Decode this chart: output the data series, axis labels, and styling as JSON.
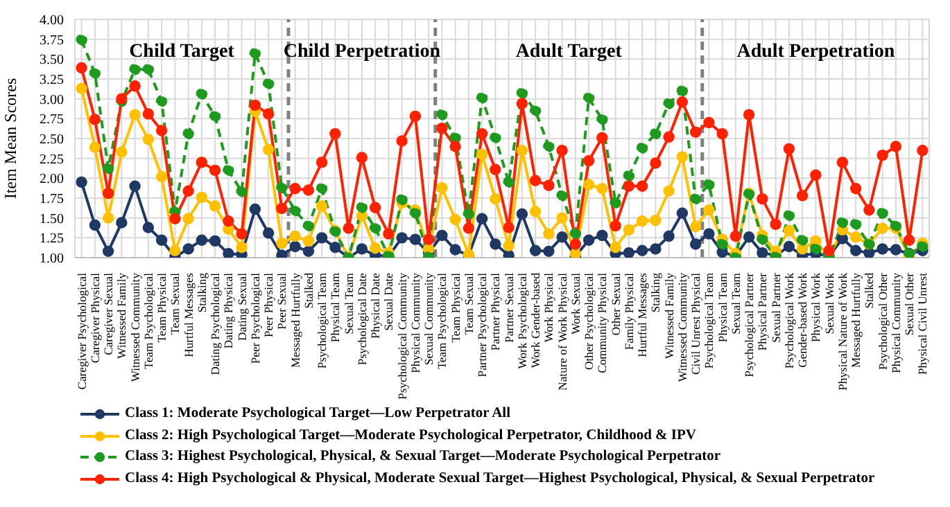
{
  "chart_data": {
    "type": "line",
    "ylabel": "Item Mean Scores",
    "categories": [
      "Caregiver Psychological",
      "Caregiver Physical",
      "Caregiver Sexual",
      "Witnessed Family",
      "Witnessed Community",
      "Team Psychological",
      "Team Physical",
      "Team Sexual",
      "Hurtful Messages",
      "Stalking",
      "Dating Psychological",
      "Dating Physical",
      "Dating Sexual",
      "Peer Psychological",
      "Peer Physical",
      "Peer Sexual",
      "Messaged Hurtfully",
      "Stalked",
      "Psychological Team",
      "Physical Team",
      "Sexual Team",
      "Psychological Date",
      "Physical Date",
      "Sexual Date",
      "Psychological Community",
      "Physical Community",
      "Sexual Community",
      "Team Psychological",
      "Team Physical",
      "Team Sexual",
      "Partner Psychological",
      "Partner Physical",
      "Partner Sexual",
      "Work Psychological",
      "Work Gender-based",
      "Work Physical",
      "Nature of Work Physical",
      "Work Sexual",
      "Other Psychological",
      "Community Physical",
      "Other Sexual",
      "Family Physical",
      "Hurtful Messages",
      "Stalking",
      "Witnessed Family",
      "Witnessed Community",
      "Civil Unrest Physical",
      "Psychological Team",
      "Physical Team",
      "Sexual Team",
      "Psychological Partner",
      "Physical Partner",
      "Sexual Partner",
      "Psychological Work",
      "Gender-based Work",
      "Physical Work",
      "Sexual Work",
      "Physical Nature of Work",
      "Messaged Hurtfully",
      "Stalked",
      "Psychological Other",
      "Physical Community",
      "Sexual Other",
      "Physical Civil Unrest"
    ],
    "series": [
      {
        "name": "Class 1: Moderate Psychological Target—Low Perpetrator All",
        "color": "#203864",
        "line_style": "solid",
        "values": [
          1.95,
          1.41,
          1.08,
          1.44,
          1.9,
          1.38,
          1.22,
          1.01,
          1.11,
          1.22,
          1.21,
          1.05,
          1.04,
          1.61,
          1.31,
          1.03,
          1.14,
          1.08,
          1.25,
          1.13,
          1.0,
          1.11,
          1.03,
          1.02,
          1.25,
          1.23,
          1.06,
          1.28,
          1.1,
          1.03,
          1.49,
          1.17,
          1.03,
          1.55,
          1.09,
          1.08,
          1.26,
          1.02,
          1.22,
          1.28,
          1.05,
          1.06,
          1.09,
          1.11,
          1.27,
          1.56,
          1.17,
          1.3,
          1.07,
          1.02,
          1.26,
          1.06,
          1.03,
          1.14,
          1.03,
          1.05,
          1.02,
          1.24,
          1.09,
          1.06,
          1.11,
          1.1,
          1.05,
          1.09
        ]
      },
      {
        "name": "Class 2: High Psychological Target—Moderate Psychological Perpetrator, Childhood & IPV",
        "color": "#ffc000",
        "line_style": "solid",
        "values": [
          3.13,
          2.39,
          1.5,
          2.33,
          2.8,
          2.49,
          2.02,
          1.09,
          1.49,
          1.76,
          1.65,
          1.36,
          1.13,
          2.84,
          2.36,
          1.18,
          1.27,
          1.21,
          1.65,
          1.34,
          1.0,
          1.53,
          1.12,
          1.06,
          1.69,
          1.6,
          1.11,
          1.88,
          1.48,
          1.04,
          2.3,
          1.74,
          1.15,
          2.35,
          1.58,
          1.3,
          1.5,
          1.05,
          1.92,
          1.87,
          1.13,
          1.35,
          1.46,
          1.47,
          1.84,
          2.27,
          1.39,
          1.6,
          1.23,
          1.05,
          1.81,
          1.28,
          1.08,
          1.34,
          1.11,
          1.21,
          1.01,
          1.35,
          1.26,
          1.17,
          1.37,
          1.37,
          1.01,
          1.18
        ]
      },
      {
        "name": "Class 3: Highest Psychological, Physical, & Sexual Target—Moderate Psychological Perpetrator",
        "color": "#1e9a1e",
        "line_style": "dashed",
        "values": [
          3.74,
          3.32,
          2.12,
          2.97,
          3.37,
          3.37,
          2.97,
          1.58,
          2.56,
          3.06,
          2.78,
          2.1,
          1.83,
          3.57,
          3.19,
          1.88,
          1.59,
          1.4,
          1.87,
          1.33,
          1.0,
          1.63,
          1.37,
          1.02,
          1.73,
          1.56,
          1.01,
          2.8,
          2.51,
          1.55,
          3.01,
          2.51,
          1.95,
          3.07,
          2.85,
          2.4,
          1.78,
          1.3,
          3.01,
          2.74,
          1.69,
          2.03,
          2.38,
          2.56,
          2.94,
          3.1,
          1.74,
          1.92,
          1.17,
          1.0,
          1.8,
          1.23,
          1.01,
          1.53,
          1.22,
          1.11,
          1.0,
          1.44,
          1.42,
          1.17,
          1.56,
          1.4,
          1.05,
          1.14
        ]
      },
      {
        "name": "Class 4: High Psychological & Physical, Moderate Sexual Target—Highest Psychological, Physical, & Sexual Perpetrator",
        "color": "#ff2200",
        "line_style": "solid",
        "values": [
          3.39,
          2.74,
          1.81,
          3.0,
          3.16,
          2.81,
          2.6,
          1.49,
          1.84,
          2.2,
          2.1,
          1.46,
          1.3,
          2.92,
          2.81,
          1.62,
          1.87,
          1.85,
          2.2,
          2.56,
          1.37,
          2.26,
          1.63,
          1.3,
          2.47,
          2.78,
          1.23,
          2.63,
          2.4,
          1.37,
          2.56,
          2.11,
          1.38,
          2.94,
          1.97,
          1.91,
          2.35,
          1.17,
          2.22,
          2.51,
          1.4,
          1.9,
          1.9,
          2.19,
          2.52,
          2.96,
          2.58,
          2.7,
          2.56,
          1.27,
          2.8,
          1.74,
          1.42,
          2.37,
          1.78,
          2.04,
          1.09,
          2.2,
          1.87,
          1.6,
          2.29,
          2.4,
          1.22,
          2.35
        ]
      }
    ],
    "ylim": [
      1,
      4
    ],
    "yticks": [
      {
        "value": 1,
        "label": "1.00"
      },
      {
        "value": 1.25,
        "label": "1.25"
      },
      {
        "value": 1.5,
        "label": "1.50"
      },
      {
        "value": 1.75,
        "label": "1.75"
      },
      {
        "value": 2,
        "label": "2.00"
      },
      {
        "value": 2.25,
        "label": "2.25"
      },
      {
        "value": 2.5,
        "label": "2.50"
      },
      {
        "value": 2.75,
        "label": "2.75"
      },
      {
        "value": 3,
        "label": "3.00"
      },
      {
        "value": 3.25,
        "label": "3.25"
      },
      {
        "value": 3.5,
        "label": "3.50"
      },
      {
        "value": 3.75,
        "label": "3.75"
      },
      {
        "value": 4,
        "label": "4.00"
      }
    ],
    "annotations": [
      "Child Target",
      "Child Perpetration",
      "Adult Target",
      "Adult Perpetration"
    ],
    "grid": true,
    "legend": "bottom",
    "marker": "circle"
  }
}
